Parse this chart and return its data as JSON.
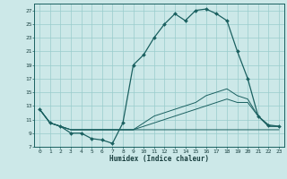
{
  "xlabel": "Humidex (Indice chaleur)",
  "bg_color": "#cce8e8",
  "grid_color": "#99cccc",
  "line_color": "#1a6060",
  "xlim": [
    -0.5,
    23.5
  ],
  "ylim": [
    7,
    28
  ],
  "yticks": [
    7,
    9,
    11,
    13,
    15,
    17,
    19,
    21,
    23,
    25,
    27
  ],
  "xticks": [
    0,
    1,
    2,
    3,
    4,
    5,
    6,
    7,
    8,
    9,
    10,
    11,
    12,
    13,
    14,
    15,
    16,
    17,
    18,
    19,
    20,
    21,
    22,
    23
  ],
  "main_line": [
    12.5,
    10.5,
    10.0,
    9.0,
    9.0,
    8.2,
    8.0,
    7.5,
    10.5,
    19.0,
    20.5,
    23.0,
    25.0,
    26.5,
    25.5,
    27.0,
    27.2,
    26.5,
    25.5,
    21.0,
    17.0,
    11.5,
    10.2,
    10.0
  ],
  "line_flat": [
    12.5,
    10.5,
    10.0,
    9.5,
    9.5,
    9.5,
    9.5,
    9.5,
    9.5,
    9.5,
    9.5,
    9.5,
    9.5,
    9.5,
    9.5,
    9.5,
    9.5,
    9.5,
    9.5,
    9.5,
    9.5,
    9.5,
    9.5,
    9.5
  ],
  "line_low": [
    12.5,
    10.5,
    10.0,
    9.5,
    9.5,
    9.5,
    9.5,
    9.5,
    9.5,
    9.5,
    10.0,
    10.5,
    11.0,
    11.5,
    12.0,
    12.5,
    13.0,
    13.5,
    14.0,
    13.5,
    13.5,
    11.5,
    10.0,
    10.0
  ],
  "line_mid": [
    12.5,
    10.5,
    10.0,
    9.5,
    9.5,
    9.5,
    9.5,
    9.5,
    9.5,
    9.5,
    10.5,
    11.5,
    12.0,
    12.5,
    13.0,
    13.5,
    14.5,
    15.0,
    15.5,
    14.5,
    14.0,
    11.5,
    10.0,
    10.0
  ]
}
